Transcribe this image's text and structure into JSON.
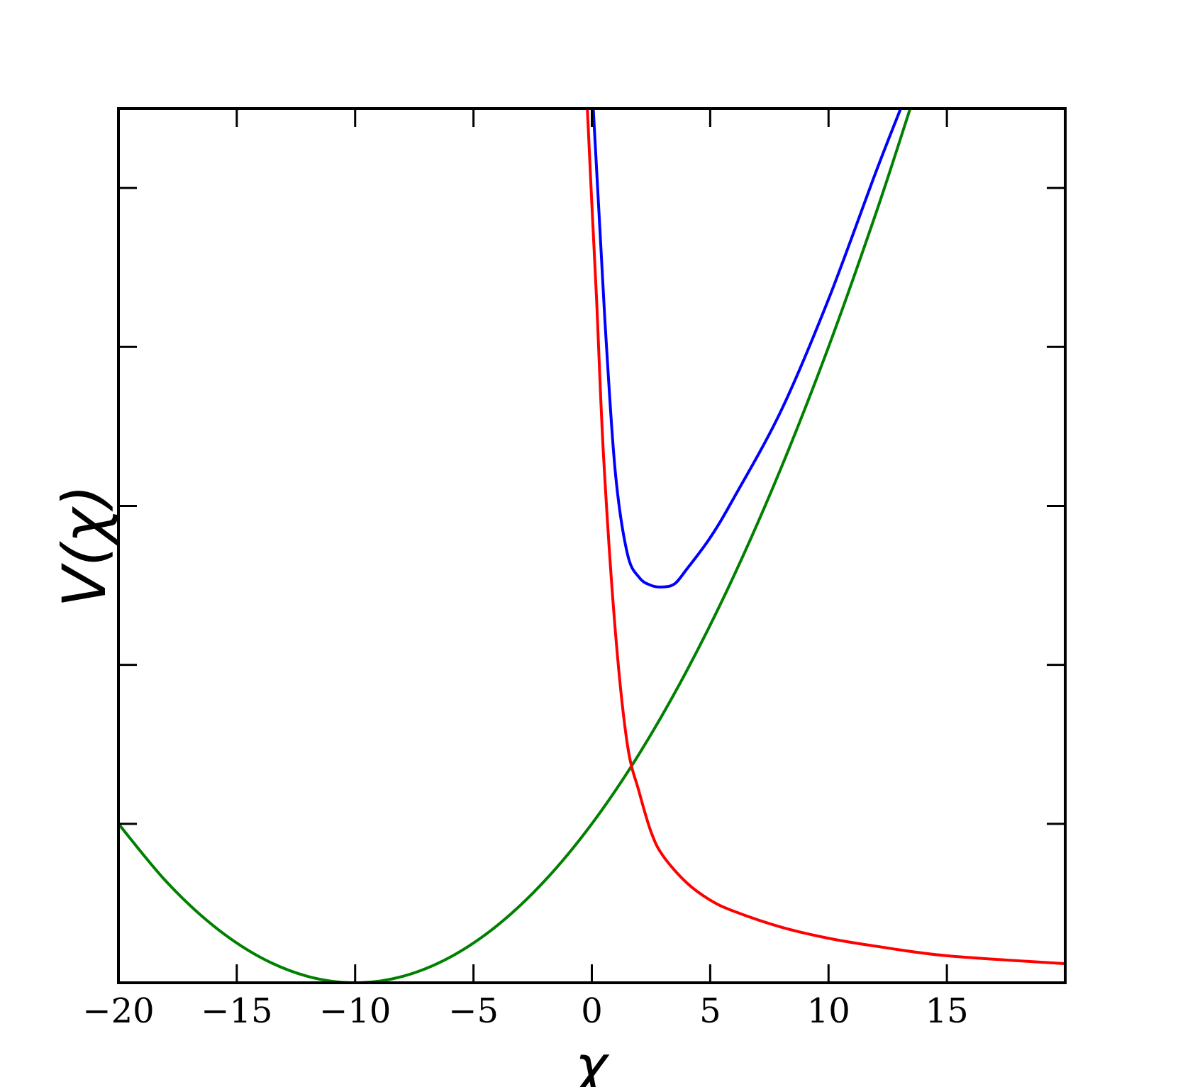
{
  "chart_data": {
    "type": "line",
    "xlabel": "χ",
    "ylabel": "V(χ)",
    "xlim": [
      -20,
      20
    ],
    "ylim": [
      0,
      5.5
    ],
    "xticks": [
      {
        "value": -20,
        "label": "−20"
      },
      {
        "value": -15,
        "label": "−15"
      },
      {
        "value": -10,
        "label": "−10"
      },
      {
        "value": -5,
        "label": "−5"
      },
      0,
      5,
      10,
      15
    ],
    "yticks": [
      1,
      2,
      3,
      4,
      5
    ],
    "series": [
      {
        "color": "#008000",
        "x": [
          -20,
          -18,
          -16,
          -14,
          -12,
          -10,
          -8,
          -6,
          -4,
          -2,
          0,
          2,
          4,
          6,
          8,
          10,
          12,
          13.45
        ],
        "values": [
          1,
          0.64,
          0.36,
          0.16,
          0.04,
          0,
          0.04,
          0.16,
          0.36,
          0.64,
          1,
          1.44,
          1.96,
          2.56,
          3.24,
          4,
          4.84,
          5.5
        ]
      },
      {
        "color": "#ff0000",
        "x": [
          -0.19,
          0,
          0.2,
          0.5,
          1,
          1.5,
          2,
          2.5,
          3,
          4,
          5,
          6,
          8,
          10,
          12,
          15,
          20
        ],
        "values": [
          5.5,
          4.9,
          4.3,
          3.3,
          2.2,
          1.5,
          1.2,
          0.95,
          0.8,
          0.63,
          0.52,
          0.45,
          0.35,
          0.28,
          0.23,
          0.17,
          0.12
        ]
      },
      {
        "color": "#0000ff",
        "x": [
          0.06,
          0.3,
          0.6,
          1,
          1.5,
          2,
          2.5,
          3,
          3.5,
          4,
          5,
          6,
          8,
          10,
          12,
          13.05
        ],
        "values": [
          5.5,
          4.85,
          4.05,
          3.2,
          2.7,
          2.55,
          2.5,
          2.49,
          2.51,
          2.6,
          2.8,
          3.05,
          3.6,
          4.3,
          5.1,
          5.5
        ]
      }
    ]
  }
}
